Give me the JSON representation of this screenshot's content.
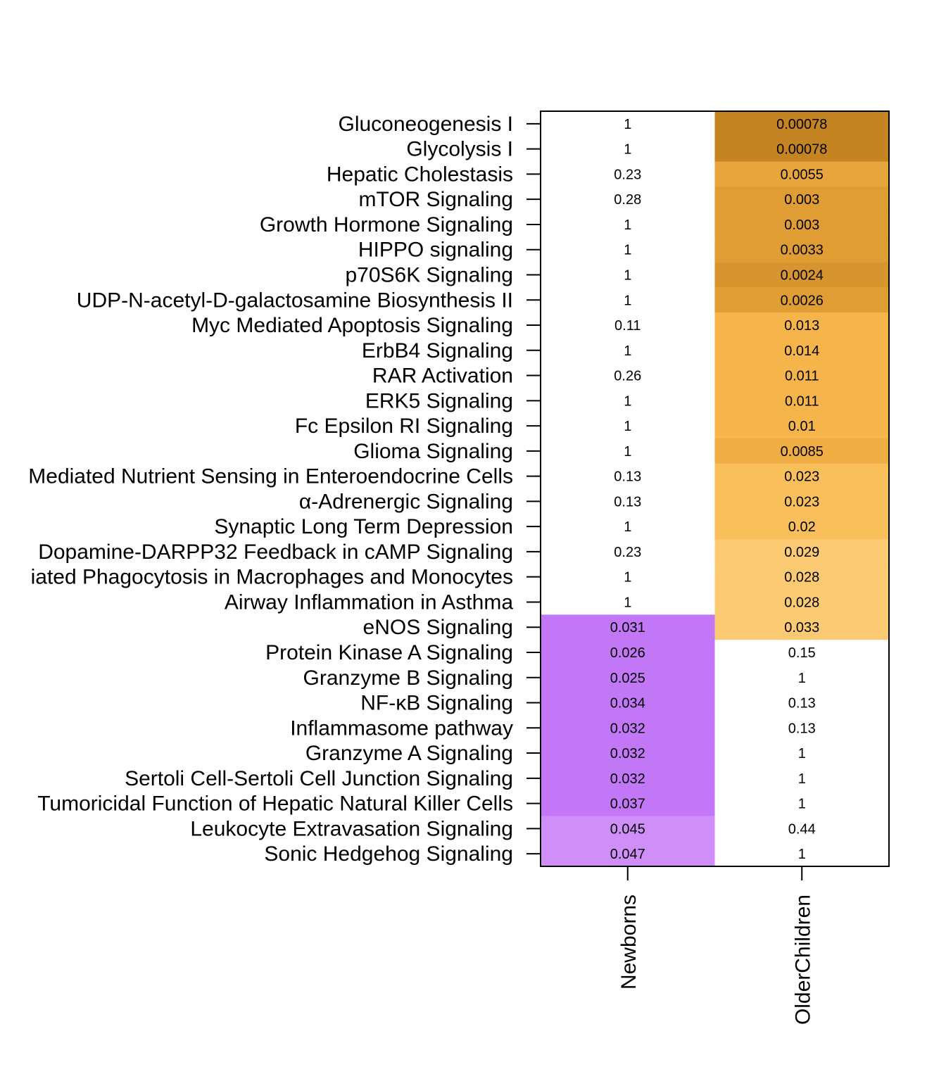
{
  "chart_data": {
    "type": "heatmap",
    "title": "",
    "xlabel": "",
    "ylabel": "",
    "columns": [
      "Newborns",
      "OlderChildren"
    ],
    "rows": [
      {
        "label": "Gluconeogenesis I",
        "values": [
          "1",
          "0.00078"
        ]
      },
      {
        "label": "Glycolysis I",
        "values": [
          "1",
          "0.00078"
        ]
      },
      {
        "label": "Hepatic Cholestasis",
        "values": [
          "0.23",
          "0.0055"
        ]
      },
      {
        "label": "mTOR Signaling",
        "values": [
          "0.28",
          "0.003"
        ]
      },
      {
        "label": "Growth Hormone Signaling",
        "values": [
          "1",
          "0.003"
        ]
      },
      {
        "label": "HIPPO signaling",
        "values": [
          "1",
          "0.0033"
        ]
      },
      {
        "label": "p70S6K Signaling",
        "values": [
          "1",
          "0.0024"
        ]
      },
      {
        "label": "UDP-N-acetyl-D-galactosamine Biosynthesis II",
        "values": [
          "1",
          "0.0026"
        ]
      },
      {
        "label": "Myc Mediated Apoptosis Signaling",
        "values": [
          "0.11",
          "0.013"
        ]
      },
      {
        "label": "ErbB4 Signaling",
        "values": [
          "1",
          "0.014"
        ]
      },
      {
        "label": "RAR Activation",
        "values": [
          "0.26",
          "0.011"
        ]
      },
      {
        "label": "ERK5 Signaling",
        "values": [
          "1",
          "0.011"
        ]
      },
      {
        "label": "Fc Epsilon RI Signaling",
        "values": [
          "1",
          "0.01"
        ]
      },
      {
        "label": "Glioma Signaling",
        "values": [
          "1",
          "0.0085"
        ]
      },
      {
        "label": "Mediated Nutrient Sensing in Enteroendocrine Cells",
        "values": [
          "0.13",
          "0.023"
        ]
      },
      {
        "label": "α-Adrenergic Signaling",
        "values": [
          "0.13",
          "0.023"
        ]
      },
      {
        "label": "Synaptic Long Term Depression",
        "values": [
          "1",
          "0.02"
        ]
      },
      {
        "label": "Dopamine-DARPP32 Feedback in cAMP Signaling",
        "values": [
          "0.23",
          "0.029"
        ]
      },
      {
        "label": "iated Phagocytosis in Macrophages and Monocytes",
        "values": [
          "1",
          "0.028"
        ]
      },
      {
        "label": "Airway Inflammation in Asthma",
        "values": [
          "1",
          "0.028"
        ]
      },
      {
        "label": "eNOS Signaling",
        "values": [
          "0.031",
          "0.033"
        ]
      },
      {
        "label": "Protein Kinase A Signaling",
        "values": [
          "0.026",
          "0.15"
        ]
      },
      {
        "label": "Granzyme B Signaling",
        "values": [
          "0.025",
          "1"
        ]
      },
      {
        "label": "NF-κB Signaling",
        "values": [
          "0.034",
          "0.13"
        ]
      },
      {
        "label": "Inflammasome pathway",
        "values": [
          "0.032",
          "0.13"
        ]
      },
      {
        "label": "Granzyme A Signaling",
        "values": [
          "0.032",
          "1"
        ]
      },
      {
        "label": "Sertoli Cell-Sertoli Cell Junction Signaling",
        "values": [
          "0.032",
          "1"
        ]
      },
      {
        "label": "Tumoricidal Function of Hepatic Natural Killer Cells",
        "values": [
          "0.037",
          "1"
        ]
      },
      {
        "label": "Leukocyte Extravasation Signaling",
        "values": [
          "0.045",
          "0.44"
        ]
      },
      {
        "label": "Sonic Hedgehog Signaling",
        "values": [
          "0.047",
          "1"
        ]
      }
    ],
    "colors": {
      "background": "#ffffff",
      "frame": "#000000",
      "text": "#000000",
      "newborns_scale": [
        {
          "max": 0.04,
          "color": "#c278f6"
        },
        {
          "max": 0.05,
          "color": "#d08ff8"
        }
      ],
      "olderchildren_scale": [
        {
          "max": 0.001,
          "color": "#c48421"
        },
        {
          "max": 0.0025,
          "color": "#d6952f"
        },
        {
          "max": 0.0045,
          "color": "#df9d33"
        },
        {
          "max": 0.007,
          "color": "#e8a53d"
        },
        {
          "max": 0.0095,
          "color": "#f0ad43"
        },
        {
          "max": 0.015,
          "color": "#f6b54b"
        },
        {
          "max": 0.025,
          "color": "#f8bf5b"
        },
        {
          "max": 0.04,
          "color": "#fbca73"
        }
      ],
      "nonsignificant": "#ffffff"
    }
  }
}
